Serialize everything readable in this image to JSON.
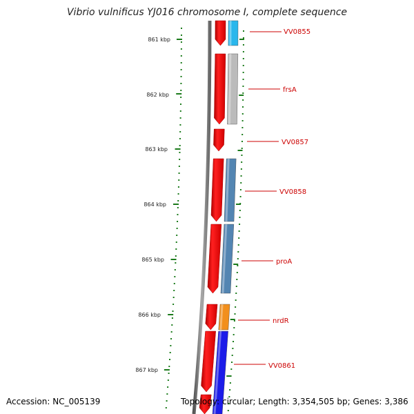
{
  "title": "Vibrio vulnificus YJ016 chromosome I, complete sequence",
  "accession_label": "Accession: NC_005139",
  "topology_label": "Topology: circular; Length: 3,354,505 bp; Genes: 3,386",
  "ruler_labels": [
    "861 kbp",
    "862 kbp",
    "863 kbp",
    "864 kbp",
    "865 kbp",
    "866 kbp",
    "867 kbp"
  ],
  "genes": [
    {
      "name": "VV0855",
      "color": "#1fb4ec"
    },
    {
      "name": "frsA",
      "color": "#b8b8b8"
    },
    {
      "name": "VV0857",
      "color": "#ffffff"
    },
    {
      "name": "VV0858",
      "color": "#4a7fae"
    },
    {
      "name": "proA",
      "color": "#4a7fae"
    },
    {
      "name": "nrdR",
      "color": "#f28a10"
    },
    {
      "name": "VV0861",
      "color": "#1010e8"
    }
  ],
  "colors": {
    "strand": "#ee0000",
    "backbone": "#888888",
    "label": "#cc0000",
    "ticks": "#1a7a1a"
  }
}
